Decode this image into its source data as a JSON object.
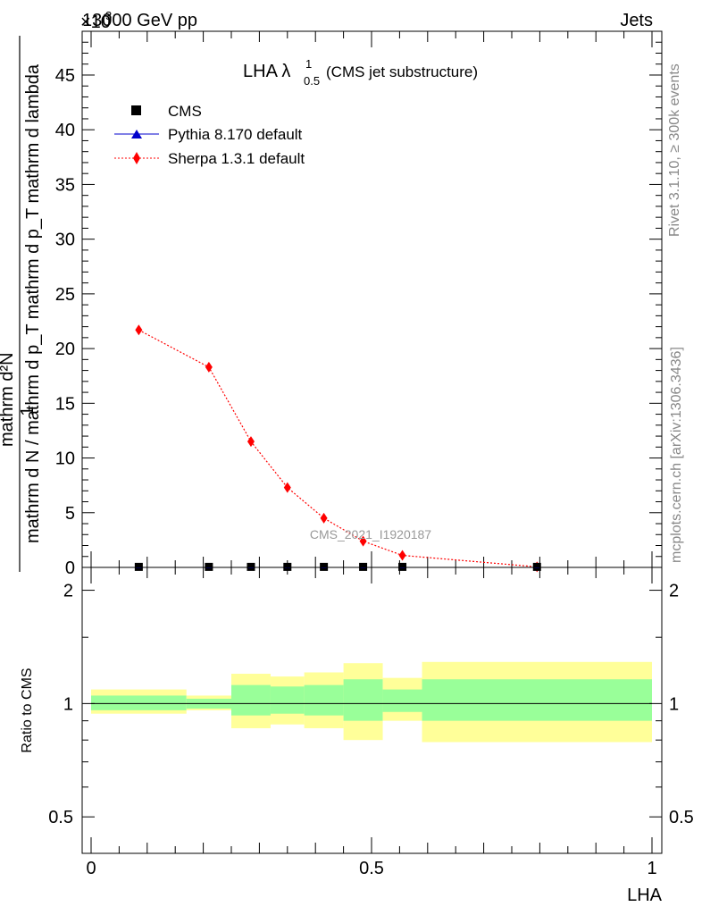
{
  "header": {
    "left_title": "13000 GeV pp",
    "right_title": "Jets",
    "exponent_label": "×10",
    "exponent_power": "3"
  },
  "sidebar": {
    "rivet": "Rivet 3.1.10, ≥ 300k events",
    "mcplots": "mcplots.cern.ch [arXiv:1306.3436]"
  },
  "chart_data": [
    {
      "type": "scatter",
      "title": {
        "main": "LHA λ",
        "sup": "1",
        "sub": "0.5",
        "suffix": "(CMS jet substructure)"
      },
      "watermark": "CMS_2021_I1920187",
      "xlabel": "LHA",
      "ylabel": {
        "num": "mathrm d²N",
        "den": "mathrm d N / mathrm d p_T mathrm d p_T mathrm d lambda",
        "one": "1"
      },
      "xlim": [
        0,
        1
      ],
      "ylim": [
        0,
        49
      ],
      "y_ticks": [
        0,
        5,
        10,
        15,
        20,
        25,
        30,
        35,
        40,
        45
      ],
      "legend_position": "top-left",
      "series": [
        {
          "name": "CMS",
          "color": "#000000",
          "marker": "square",
          "x": [
            0.085,
            0.21,
            0.285,
            0.35,
            0.415,
            0.485,
            0.555,
            0.795
          ],
          "y": [
            0.05,
            0.05,
            0.05,
            0.05,
            0.05,
            0.05,
            0.05,
            0.05
          ]
        },
        {
          "name": "Pythia 8.170 default",
          "color": "#0000cc",
          "marker": "triangle",
          "x": [],
          "y": []
        },
        {
          "name": "Sherpa 1.3.1 default",
          "color": "#ff0000",
          "marker": "diamond",
          "line": "dotted",
          "x": [
            0.085,
            0.21,
            0.285,
            0.35,
            0.415,
            0.485,
            0.555,
            0.795
          ],
          "y": [
            21.7,
            18.3,
            11.5,
            7.3,
            4.5,
            2.4,
            1.1,
            0.05
          ]
        }
      ]
    },
    {
      "type": "area",
      "ylabel": "Ratio to CMS",
      "xlabel": "LHA",
      "xlim": [
        0,
        1
      ],
      "ylim": [
        0.4,
        2.3
      ],
      "y_scale": "log",
      "y_ticks": [
        0.5,
        1,
        2
      ],
      "x_ticks": [
        0,
        0.5,
        1
      ],
      "x_tick_labels": [
        "0",
        "0.5",
        "1"
      ],
      "reference_line": 1,
      "bins": [
        {
          "x0": 0.0,
          "x1": 0.17,
          "green": [
            0.96,
            1.05
          ],
          "yellow": [
            0.94,
            1.09
          ]
        },
        {
          "x0": 0.17,
          "x1": 0.25,
          "green": [
            0.97,
            1.03
          ],
          "yellow": [
            0.96,
            1.05
          ]
        },
        {
          "x0": 0.25,
          "x1": 0.32,
          "green": [
            0.93,
            1.12
          ],
          "yellow": [
            0.86,
            1.2
          ]
        },
        {
          "x0": 0.32,
          "x1": 0.38,
          "green": [
            0.94,
            1.11
          ],
          "yellow": [
            0.88,
            1.18
          ]
        },
        {
          "x0": 0.38,
          "x1": 0.45,
          "green": [
            0.93,
            1.12
          ],
          "yellow": [
            0.86,
            1.21
          ]
        },
        {
          "x0": 0.45,
          "x1": 0.52,
          "green": [
            0.9,
            1.16
          ],
          "yellow": [
            0.8,
            1.28
          ]
        },
        {
          "x0": 0.52,
          "x1": 0.59,
          "green": [
            0.95,
            1.09
          ],
          "yellow": [
            0.9,
            1.17
          ]
        },
        {
          "x0": 0.59,
          "x1": 1.0,
          "green": [
            0.9,
            1.16
          ],
          "yellow": [
            0.79,
            1.29
          ]
        }
      ],
      "colors": {
        "green": "#99ff99",
        "yellow": "#ffff99"
      }
    }
  ]
}
